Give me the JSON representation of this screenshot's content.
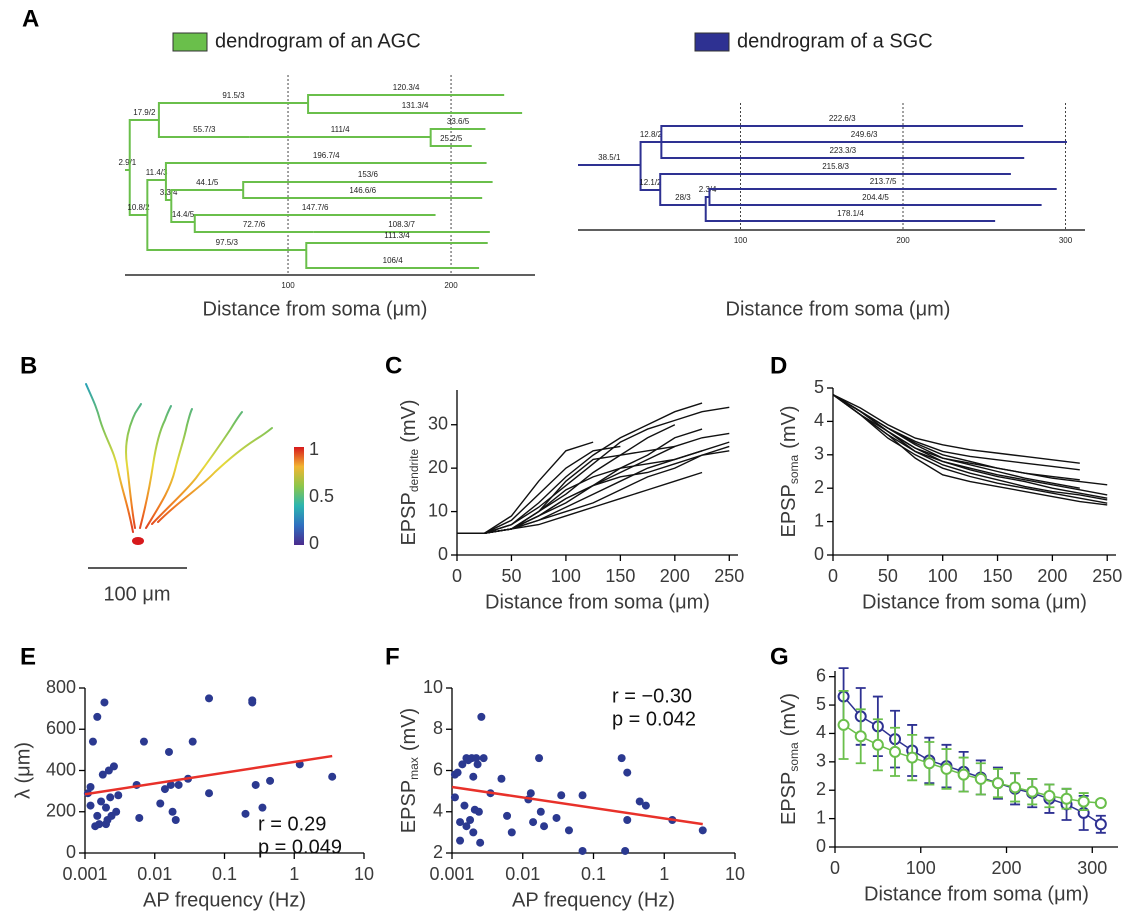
{
  "chart_data": [
    {
      "type": "dendrogram",
      "panel": "A",
      "legend": "dendrogram of an AGC",
      "color": "#6abf4b",
      "xlabel": "Distance from soma (μm)",
      "xlim": [
        0,
        251.5
      ],
      "xticks": [
        100,
        200
      ],
      "branches": [
        {
          "label": "2.9/1",
          "x": [
            0,
            2.9
          ]
        },
        {
          "label": "17.9/2",
          "x": [
            2.9,
            20.8
          ]
        },
        {
          "label": "91.5/3",
          "x": [
            20.8,
            112.3
          ]
        },
        {
          "label": "120.3/4",
          "x": [
            112.3,
            232.6
          ]
        },
        {
          "label": "131.3/4",
          "x": [
            112.3,
            243.6
          ]
        },
        {
          "label": "55.7/3",
          "x": [
            20.8,
            76.5
          ]
        },
        {
          "label": "111/4",
          "x": [
            76.5,
            187.5
          ]
        },
        {
          "label": "33.6/5",
          "x": [
            187.5,
            221.1
          ]
        },
        {
          "label": "25.2/5",
          "x": [
            187.5,
            212.7
          ]
        },
        {
          "label": "10.8/2",
          "x": [
            2.9,
            13.7
          ]
        },
        {
          "label": "11.4/3",
          "x": [
            13.7,
            25.1
          ]
        },
        {
          "label": "196.7/4",
          "x": [
            25.1,
            221.8
          ]
        },
        {
          "label": "3.3/4",
          "x": [
            25.1,
            28.4
          ]
        },
        {
          "label": "44.1/5",
          "x": [
            28.4,
            72.5
          ]
        },
        {
          "label": "153/6",
          "x": [
            72.5,
            225.5
          ]
        },
        {
          "label": "146.6/6",
          "x": [
            72.5,
            219.1
          ]
        },
        {
          "label": "14.4/5",
          "x": [
            28.4,
            42.8
          ]
        },
        {
          "label": "147.7/6",
          "x": [
            42.8,
            190.5
          ]
        },
        {
          "label": "72.7/6",
          "x": [
            42.8,
            115.5
          ]
        },
        {
          "label": "108.3/7",
          "x": [
            115.5,
            223.8
          ]
        },
        {
          "label": "97.5/3",
          "x": [
            13.7,
            111.2
          ]
        },
        {
          "label": "111.3/4",
          "x": [
            111.2,
            222.5
          ]
        },
        {
          "label": "106/4",
          "x": [
            111.2,
            217.2
          ]
        }
      ]
    },
    {
      "type": "dendrogram",
      "legend": "dendrogram of a SGC",
      "color": "#2e3192",
      "xlabel": "Distance from soma (μm)",
      "xlim": [
        0,
        312
      ],
      "xticks": [
        100,
        200,
        300
      ],
      "branches": [
        {
          "label": "38.5/1",
          "x": [
            0,
            38.5
          ]
        },
        {
          "label": "12.8/2",
          "x": [
            38.5,
            51.3
          ]
        },
        {
          "label": "222.6/3",
          "x": [
            51.3,
            273.9
          ]
        },
        {
          "label": "249.6/3",
          "x": [
            51.3,
            300.9
          ]
        },
        {
          "label": "223.3/3",
          "x": [
            51.3,
            274.6
          ]
        },
        {
          "label": "12.1/2",
          "x": [
            38.5,
            50.6
          ]
        },
        {
          "label": "215.8/3",
          "x": [
            50.6,
            266.4
          ]
        },
        {
          "label": "28/3",
          "x": [
            50.6,
            78.6
          ]
        },
        {
          "label": "2.3/4",
          "x": [
            78.6,
            80.9
          ]
        },
        {
          "label": "213.7/5",
          "x": [
            80.9,
            294.6
          ]
        },
        {
          "label": "204.4/5",
          "x": [
            80.9,
            285.3
          ]
        },
        {
          "label": "178.1/4",
          "x": [
            78.6,
            256.7
          ]
        }
      ]
    },
    {
      "type": "morphology",
      "panel": "B",
      "scalebar": "100 μm",
      "clim": [
        0,
        1
      ],
      "cticks": [
        0,
        0.5,
        1
      ]
    },
    {
      "type": "line",
      "panel": "C",
      "color": "#111111",
      "xlabel": "Distance from soma (μm)",
      "ylabel": {
        "text": "EPSP",
        "sub": "dendrite",
        "unit": "(mV)"
      },
      "xlim": [
        0,
        258
      ],
      "xticks": [
        0,
        50,
        100,
        150,
        200,
        250
      ],
      "ylim": [
        0,
        38
      ],
      "yticks": [
        0,
        10,
        20,
        30
      ],
      "x": [
        0,
        25,
        50,
        75,
        100,
        125,
        150,
        175,
        200,
        225,
        250
      ],
      "series": [
        {
          "values": [
            5,
            5,
            9,
            17,
            24,
            26,
            null,
            null,
            null,
            null,
            null
          ]
        },
        {
          "values": [
            5,
            5,
            8,
            14,
            20,
            24,
            25,
            null,
            null,
            null,
            null
          ]
        },
        {
          "values": [
            5,
            5,
            7,
            12,
            18,
            23,
            27,
            30,
            33,
            35,
            null
          ]
        },
        {
          "values": [
            5,
            5,
            7,
            11,
            16,
            21,
            26,
            29,
            31,
            33,
            34
          ]
        },
        {
          "values": [
            5,
            5,
            6,
            10,
            14,
            19,
            23,
            27,
            30,
            null,
            null
          ]
        },
        {
          "values": [
            5,
            5,
            6,
            9,
            13,
            16,
            20,
            23,
            27,
            29,
            null
          ]
        },
        {
          "values": [
            5,
            5,
            6,
            9,
            12,
            16,
            19,
            22,
            25,
            27,
            28
          ]
        },
        {
          "values": [
            5,
            5,
            6,
            8,
            11,
            14,
            17,
            20,
            22,
            24,
            26
          ]
        },
        {
          "values": [
            5,
            5,
            6,
            9,
            13,
            16,
            18,
            19,
            21,
            23,
            25
          ]
        },
        {
          "values": [
            5,
            5,
            6,
            10,
            15,
            18,
            20,
            21,
            22,
            24,
            null
          ]
        },
        {
          "values": [
            5,
            5,
            6,
            8,
            10,
            12,
            15,
            18,
            20,
            23,
            24
          ]
        },
        {
          "values": [
            5,
            5,
            6,
            7,
            9,
            11,
            13,
            15,
            17,
            19,
            null
          ]
        },
        {
          "values": [
            5,
            5,
            6,
            10,
            17,
            22,
            23,
            24,
            25,
            null,
            null
          ]
        }
      ]
    },
    {
      "type": "line",
      "panel": "D",
      "color": "#111111",
      "xlabel": "Distance from soma (μm)",
      "ylabel": {
        "text": "EPSP",
        "sub": "soma",
        "unit": "(mV)"
      },
      "xlim": [
        0,
        258
      ],
      "xticks": [
        0,
        50,
        100,
        150,
        200,
        250
      ],
      "ylim": [
        0,
        5
      ],
      "yticks": [
        0,
        1,
        2,
        3,
        4,
        5
      ],
      "x": [
        0,
        25,
        50,
        75,
        100,
        125,
        150,
        175,
        200,
        225,
        250
      ],
      "series": [
        {
          "values": [
            4.8,
            4.4,
            3.9,
            3.5,
            3.3,
            3.15,
            3.05,
            2.95,
            2.85,
            2.75,
            null
          ]
        },
        {
          "values": [
            4.8,
            4.3,
            3.8,
            3.4,
            3.1,
            2.95,
            2.85,
            2.75,
            2.65,
            2.55,
            null
          ]
        },
        {
          "values": [
            4.8,
            4.3,
            3.8,
            3.35,
            3.0,
            2.8,
            2.6,
            2.45,
            2.35,
            2.25,
            null
          ]
        },
        {
          "values": [
            4.8,
            4.3,
            3.7,
            3.2,
            2.9,
            2.75,
            2.6,
            2.45,
            2.3,
            2.2,
            2.1
          ]
        },
        {
          "values": [
            4.8,
            4.3,
            3.7,
            3.2,
            2.8,
            2.6,
            2.4,
            2.25,
            2.1,
            1.95,
            1.8
          ]
        },
        {
          "values": [
            4.8,
            4.2,
            3.6,
            3.1,
            2.7,
            2.45,
            2.25,
            2.05,
            1.9,
            1.8,
            1.65
          ]
        },
        {
          "values": [
            4.8,
            4.2,
            3.5,
            3.0,
            2.6,
            2.35,
            2.15,
            2.0,
            1.85,
            1.7,
            1.55
          ]
        },
        {
          "values": [
            4.8,
            4.2,
            3.6,
            2.9,
            2.4,
            2.2,
            2.05,
            1.9,
            1.75,
            1.6,
            1.5
          ]
        },
        {
          "values": [
            4.8,
            4.3,
            3.8,
            3.3,
            2.9,
            2.7,
            2.5,
            2.3,
            2.15,
            2.0,
            null
          ]
        },
        {
          "values": [
            4.8,
            4.2,
            3.7,
            3.1,
            2.8,
            2.55,
            2.35,
            2.2,
            2.0,
            1.85,
            1.7
          ]
        }
      ]
    },
    {
      "type": "scatter",
      "panel": "E",
      "color": "#2b3990",
      "xscale": "log",
      "xlabel": "AP frequency (Hz)",
      "ylabel": "λ (μm)",
      "xlim": [
        0.001,
        10
      ],
      "xticks": [
        0.001,
        0.01,
        0.1,
        1,
        10
      ],
      "ylim": [
        0,
        800
      ],
      "yticks": [
        0,
        200,
        400,
        600,
        800
      ],
      "x": [
        0.0011,
        0.0012,
        0.0012,
        0.0013,
        0.0014,
        0.0015,
        0.0015,
        0.0016,
        0.0017,
        0.0018,
        0.0019,
        0.002,
        0.002,
        0.0021,
        0.0022,
        0.0023,
        0.0024,
        0.0026,
        0.0028,
        0.003,
        0.0055,
        0.006,
        0.007,
        0.012,
        0.014,
        0.016,
        0.017,
        0.018,
        0.02,
        0.022,
        0.03,
        0.035,
        0.06,
        0.06,
        0.2,
        0.25,
        0.25,
        0.28,
        0.35,
        0.45,
        1.2,
        3.5
      ],
      "values": [
        290,
        320,
        230,
        540,
        130,
        660,
        180,
        140,
        250,
        380,
        730,
        220,
        140,
        160,
        400,
        270,
        180,
        420,
        200,
        280,
        330,
        170,
        540,
        240,
        310,
        490,
        330,
        200,
        160,
        330,
        360,
        540,
        750,
        290,
        190,
        740,
        730,
        330,
        220,
        350,
        430,
        370
      ],
      "fit": {
        "color": "#e8312a",
        "x": [
          0.001,
          3.5
        ],
        "values": [
          285,
          470
        ]
      },
      "annotations": [
        "r = 0.29",
        "p = 0.049"
      ]
    },
    {
      "type": "scatter",
      "panel": "F",
      "color": "#2b3990",
      "xscale": "log",
      "xlabel": "AP frequency (Hz)",
      "ylabel": {
        "text": "EPSP",
        "sub": "max",
        "unit": "(mV)"
      },
      "xlim": [
        0.001,
        10
      ],
      "xticks": [
        0.001,
        0.01,
        0.1,
        1,
        10
      ],
      "ylim": [
        2,
        10
      ],
      "yticks": [
        2,
        4,
        6,
        8,
        10
      ],
      "x": [
        0.0011,
        0.0011,
        0.0012,
        0.0013,
        0.0013,
        0.0014,
        0.0015,
        0.0016,
        0.0016,
        0.0017,
        0.0018,
        0.0019,
        0.002,
        0.002,
        0.0021,
        0.0022,
        0.0023,
        0.0024,
        0.0025,
        0.0026,
        0.0028,
        0.0035,
        0.005,
        0.006,
        0.007,
        0.012,
        0.013,
        0.014,
        0.017,
        0.018,
        0.02,
        0.03,
        0.035,
        0.045,
        0.07,
        0.07,
        0.25,
        0.28,
        0.3,
        0.3,
        0.45,
        0.55,
        1.3,
        3.5
      ],
      "values": [
        5.8,
        4.7,
        5.9,
        3.5,
        2.6,
        6.3,
        4.3,
        6.6,
        3.3,
        6.5,
        3.6,
        6.6,
        5.7,
        3.0,
        4.1,
        6.6,
        6.3,
        4.0,
        2.5,
        8.6,
        6.6,
        4.9,
        5.6,
        3.8,
        3.0,
        4.6,
        4.9,
        3.5,
        6.6,
        4.0,
        3.3,
        3.7,
        4.8,
        3.1,
        4.8,
        2.1,
        6.6,
        2.1,
        3.6,
        5.9,
        4.5,
        4.3,
        3.6,
        3.1
      ],
      "fit": {
        "color": "#e8312a",
        "x": [
          0.001,
          3.5
        ],
        "values": [
          5.2,
          3.4
        ]
      },
      "annotations": [
        "r = −0.30",
        "p = 0.042"
      ]
    },
    {
      "type": "errorbar",
      "panel": "G",
      "xlabel": "Distance from soma (μm)",
      "ylabel": {
        "text": "EPSP",
        "sub": "soma",
        "unit": "(mV)"
      },
      "xlim": [
        0,
        330
      ],
      "xticks": [
        0,
        100,
        200,
        300
      ],
      "ylim": [
        0,
        6.2
      ],
      "yticks": [
        0,
        1,
        2,
        3,
        4,
        5,
        6
      ],
      "x": [
        10,
        30,
        50,
        70,
        90,
        110,
        130,
        150,
        170,
        190,
        210,
        230,
        250,
        270,
        290,
        310
      ],
      "series": [
        {
          "color": "#2e3192",
          "values": [
            5.3,
            4.6,
            4.25,
            3.8,
            3.4,
            3.05,
            2.85,
            2.65,
            2.45,
            2.25,
            2.05,
            1.9,
            1.7,
            1.5,
            1.2,
            0.8
          ],
          "errors": [
            1.0,
            1.0,
            1.05,
            1.0,
            0.9,
            0.8,
            0.75,
            0.7,
            0.6,
            0.55,
            0.55,
            0.5,
            0.5,
            0.55,
            0.6,
            0.3
          ]
        },
        {
          "color": "#6abf4b",
          "values": [
            4.3,
            3.9,
            3.6,
            3.35,
            3.15,
            2.95,
            2.75,
            2.55,
            2.4,
            2.25,
            2.1,
            1.95,
            1.8,
            1.7,
            1.6,
            1.55
          ],
          "errors": [
            1.2,
            0.95,
            0.9,
            0.85,
            0.8,
            0.75,
            0.7,
            0.6,
            0.55,
            0.5,
            0.5,
            0.45,
            0.4,
            0.35,
            0.3,
            0.1
          ]
        }
      ]
    }
  ]
}
